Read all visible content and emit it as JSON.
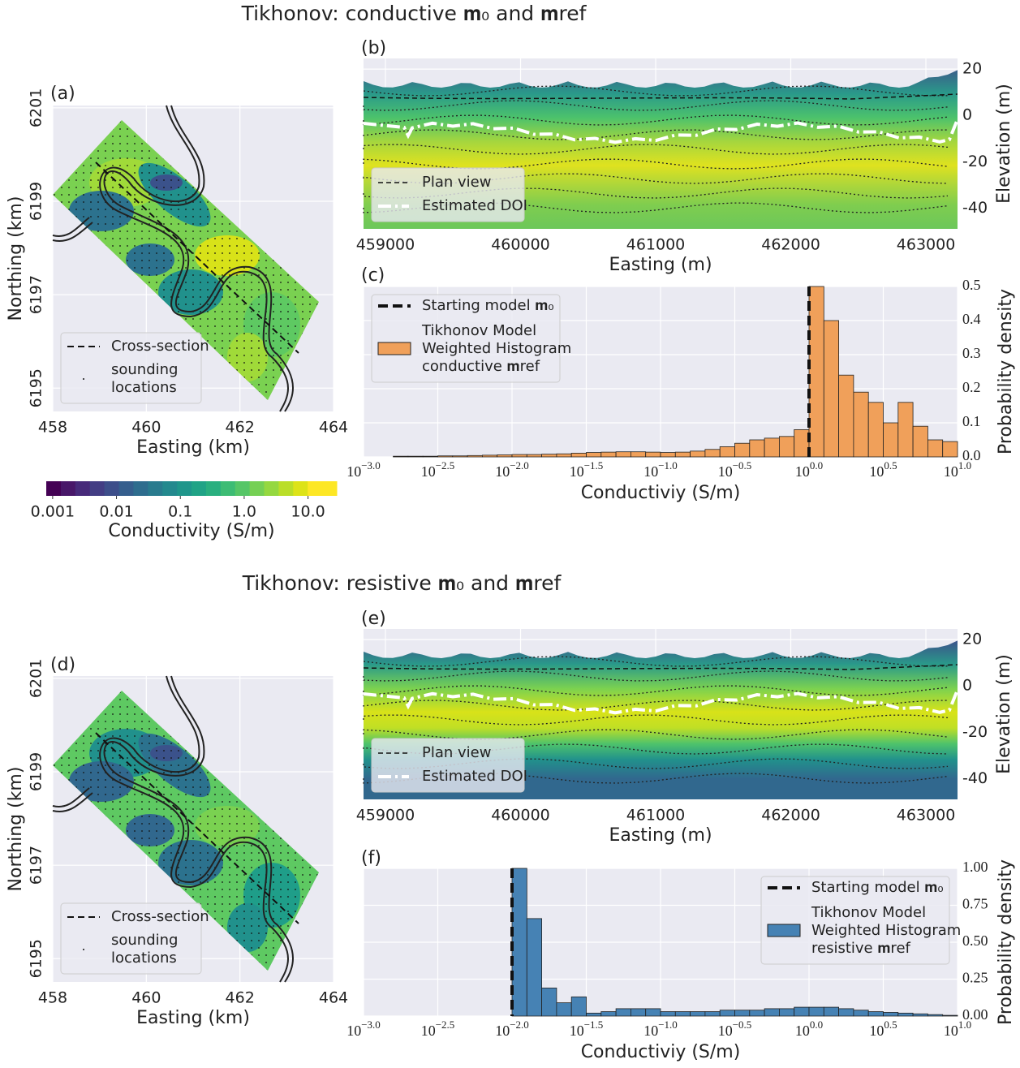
{
  "titles": [
    "Tikhonov: conductive 𝐦₀ and 𝐦ref",
    "Tikhonov: resistive 𝐦₀ and 𝐦ref"
  ],
  "chart_data": [
    {
      "type": "map",
      "label": "(a)",
      "xlabel": "Easting (km)",
      "ylabel": "Northing (km)",
      "xlim": [
        458,
        464
      ],
      "ylim": [
        6194.5,
        6201.05
      ],
      "xticks": [
        458,
        460,
        462,
        464
      ],
      "yticks": [
        6195,
        6197,
        6199,
        6201
      ],
      "grid": true,
      "legend": [
        {
          "name": "Cross-section"
        },
        {
          "name": [
            "sounding",
            "locations"
          ]
        }
      ]
    },
    {
      "type": "colorbar",
      "label": "Conductivity (S/m)",
      "xlim": [
        -3.1,
        1.45
      ],
      "xticks": [
        {
          "value": -3,
          "label": "0.001"
        },
        {
          "value": -2,
          "label": "0.01"
        },
        {
          "value": -1,
          "label": "0.1"
        },
        {
          "value": 0,
          "label": "1.0"
        },
        {
          "value": 1,
          "label": "10.0"
        }
      ],
      "colors": [
        "#440154",
        "#481769",
        "#472a7a",
        "#433d84",
        "#3d4e8a",
        "#355e8d",
        "#2e6d8e",
        "#297b8e",
        "#23898e",
        "#1f968b",
        "#20a386",
        "#29af7f",
        "#3dbc74",
        "#56c667",
        "#75d054",
        "#95d840",
        "#bade28",
        "#dde318",
        "#fde725",
        "#fde725"
      ]
    },
    {
      "type": "section",
      "label": "(b)",
      "xlabel": "Easting (m)",
      "ylabel": "Elevation (m)",
      "xlim": [
        458838,
        463234
      ],
      "ylim": [
        -49,
        24.6
      ],
      "xticks": [
        459000,
        460000,
        461000,
        462000,
        463000
      ],
      "yticks": [
        20,
        0,
        -20,
        -40
      ],
      "grid": true,
      "legend": [
        {
          "name": "Plan view"
        },
        {
          "name": "Estimated DOI"
        }
      ]
    },
    {
      "type": "histogram",
      "label": "(c)",
      "xlabel": "Conductiviy (S/m)",
      "ylabel": "Probability density",
      "xlog": true,
      "xlim": [
        -3,
        1
      ],
      "ylim": [
        0,
        0.5
      ],
      "xticks": [
        {
          "value": -3,
          "label": "10−3.0"
        },
        {
          "value": -2.5,
          "label": "10−2.5"
        },
        {
          "value": -2,
          "label": "10−2.0"
        },
        {
          "value": -1.5,
          "label": "10−1.5"
        },
        {
          "value": -1,
          "label": "10−1.0"
        },
        {
          "value": -0.5,
          "label": "10−0.5"
        },
        {
          "value": 0,
          "label": "100.0"
        },
        {
          "value": 0.5,
          "label": "100.5"
        },
        {
          "value": 1,
          "label": "101.0"
        }
      ],
      "yticks": [
        {
          "value": 0,
          "label": "0.0"
        },
        0.1,
        0.2,
        0.3,
        0.4,
        0.5
      ],
      "grid": true,
      "legend_corner": "upper left",
      "bins": [
        -2.8,
        -2.7,
        -2.6,
        -2.5,
        -2.4,
        -2.3,
        -2.2,
        -2.1,
        -2.0,
        -1.9,
        -1.8,
        -1.7,
        -1.6,
        -1.5,
        -1.4,
        -1.3,
        -1.2,
        -1.1,
        -1.0,
        -0.9,
        -0.8,
        -0.7,
        -0.6,
        -0.5,
        -0.4,
        -0.3,
        -0.2,
        -0.1,
        0.0,
        0.1,
        0.2,
        0.3,
        0.4,
        0.5,
        0.6,
        0.7,
        0.8,
        0.9,
        1.0
      ],
      "values": [
        0.002,
        0.002,
        0.002,
        0.003,
        0.003,
        0.004,
        0.005,
        0.006,
        0.007,
        0.007,
        0.008,
        0.009,
        0.011,
        0.013,
        0.014,
        0.015,
        0.015,
        0.014,
        0.013,
        0.014,
        0.017,
        0.022,
        0.03,
        0.04,
        0.05,
        0.055,
        0.06,
        0.08,
        0.5,
        0.4,
        0.24,
        0.19,
        0.16,
        0.1,
        0.16,
        0.09,
        0.05,
        0.045,
        0.04
      ],
      "color": "#f0a05a",
      "vline": {
        "name": "Starting model 𝐦₀",
        "value": 0.0,
        "color": "#111111"
      },
      "series_name": [
        "Tikhonov Model",
        "Weighted Histogram",
        "conductive 𝐦ref"
      ]
    },
    {
      "type": "map",
      "label": "(d)",
      "xlabel": "Easting (km)",
      "ylabel": "Northing (km)",
      "xlim": [
        458,
        464
      ],
      "ylim": [
        6194.5,
        6201.05
      ],
      "xticks": [
        458,
        460,
        462,
        464
      ],
      "yticks": [
        6195,
        6197,
        6199,
        6201
      ],
      "grid": true,
      "legend": [
        {
          "name": "Cross-section"
        },
        {
          "name": [
            "sounding",
            "locations"
          ]
        }
      ]
    },
    {
      "type": "section",
      "label": "(e)",
      "xlabel": "Easting (m)",
      "ylabel": "Elevation (m)",
      "xlim": [
        458838,
        463234
      ],
      "ylim": [
        -49,
        24.6
      ],
      "xticks": [
        459000,
        460000,
        461000,
        462000,
        463000
      ],
      "yticks": [
        20,
        0,
        -20,
        -40
      ],
      "grid": true,
      "legend": [
        {
          "name": "Plan view"
        },
        {
          "name": "Estimated DOI"
        }
      ]
    },
    {
      "type": "histogram",
      "label": "(f)",
      "xlabel": "Conductiviy (S/m)",
      "ylabel": "Probability density",
      "xlog": true,
      "xlim": [
        -3,
        1
      ],
      "ylim": [
        0,
        1.0
      ],
      "xticks": [
        {
          "value": -3,
          "label": "10−3.0"
        },
        {
          "value": -2.5,
          "label": "10−2.5"
        },
        {
          "value": -2,
          "label": "10−2.0"
        },
        {
          "value": -1.5,
          "label": "10−1.5"
        },
        {
          "value": -1,
          "label": "10−1.0"
        },
        {
          "value": -0.5,
          "label": "10−0.5"
        },
        {
          "value": 0,
          "label": "100.0"
        },
        {
          "value": 0.5,
          "label": "100.5"
        },
        {
          "value": 1,
          "label": "101.0"
        }
      ],
      "yticks": [
        {
          "value": 0,
          "label": "0.00"
        },
        0.25,
        {
          "value": 0.5,
          "label": "0.50"
        },
        0.75,
        {
          "value": 1.0,
          "label": "1.00"
        }
      ],
      "grid": true,
      "legend_corner": "upper right",
      "bins": [
        -2.0,
        -1.9,
        -1.8,
        -1.7,
        -1.6,
        -1.5,
        -1.4,
        -1.3,
        -1.2,
        -1.1,
        -1.0,
        -0.9,
        -0.8,
        -0.7,
        -0.6,
        -0.5,
        -0.4,
        -0.3,
        -0.2,
        -0.1,
        0.0,
        0.1,
        0.2,
        0.3,
        0.4,
        0.5,
        0.6,
        0.7,
        0.8,
        0.9,
        1.0
      ],
      "values": [
        1.0,
        0.66,
        0.19,
        0.09,
        0.13,
        0.02,
        0.03,
        0.05,
        0.05,
        0.05,
        0.03,
        0.03,
        0.03,
        0.03,
        0.04,
        0.04,
        0.04,
        0.05,
        0.05,
        0.06,
        0.06,
        0.06,
        0.05,
        0.04,
        0.03,
        0.025,
        0.02,
        0.015,
        0.01,
        0.005
      ],
      "color": "#4682b4",
      "vline": {
        "name": "Starting model 𝐦₀",
        "value": -2.0,
        "color": "#111111"
      },
      "series_name": [
        "Tikhonov Model",
        "Weighted Histogram",
        "resistive 𝐦ref"
      ]
    }
  ]
}
